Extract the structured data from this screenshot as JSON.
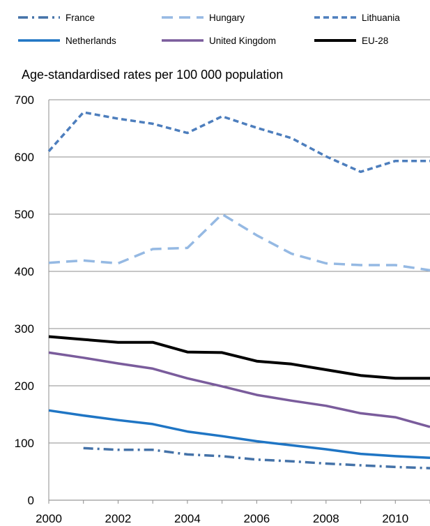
{
  "chart_data": {
    "type": "line",
    "ylabel": "Age-standardised rates per 100 000 population",
    "xlabel": "",
    "ylim": [
      0,
      700
    ],
    "xlim": [
      2000,
      2011
    ],
    "yticks": [
      "0",
      "100",
      "200",
      "300",
      "400",
      "500",
      "600",
      "700"
    ],
    "xticks": [
      "2000",
      "2002",
      "2004",
      "2006",
      "2008",
      "2010"
    ],
    "grid": true,
    "legend_position": "top",
    "x": [
      2000,
      2001,
      2002,
      2003,
      2004,
      2005,
      2006,
      2007,
      2008,
      2009,
      2010,
      2011
    ],
    "series": [
      {
        "name": "France",
        "color": "#4472a8",
        "dash": "dashdot",
        "values": [
          null,
          91,
          88,
          88,
          80,
          77,
          71,
          68,
          64,
          61,
          58,
          56
        ]
      },
      {
        "name": "Hungary",
        "color": "#95b9e3",
        "dash": "longdash",
        "values": [
          415,
          419,
          414,
          439,
          441,
          500,
          463,
          431,
          414,
          411,
          411,
          402
        ]
      },
      {
        "name": "Lithuania",
        "color": "#4d7ebd",
        "dash": "dash",
        "values": [
          610,
          678,
          667,
          658,
          642,
          671,
          651,
          633,
          601,
          574,
          593,
          593
        ]
      },
      {
        "name": "Netherlands",
        "color": "#1f75c4",
        "dash": "solid",
        "values": [
          157,
          148,
          140,
          133,
          120,
          112,
          103,
          96,
          89,
          81,
          77,
          74
        ]
      },
      {
        "name": "United Kingdom",
        "color": "#7a5c9c",
        "dash": "solid",
        "values": [
          258,
          249,
          239,
          230,
          213,
          199,
          184,
          174,
          165,
          152,
          145,
          128
        ]
      },
      {
        "name": "EU-28",
        "color": "#000000",
        "dash": "solid",
        "values": [
          286,
          281,
          276,
          276,
          259,
          258,
          243,
          238,
          228,
          218,
          213,
          213
        ]
      }
    ]
  }
}
